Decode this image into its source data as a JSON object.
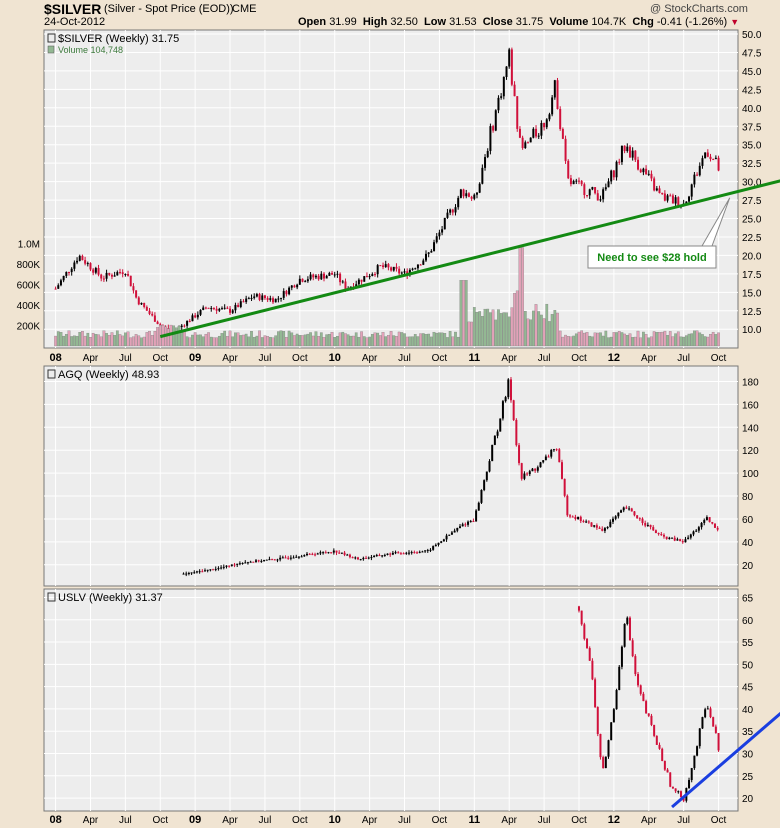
{
  "header": {
    "symbol": "$SILVER",
    "name": "(Silver - Spot Price (EOD))",
    "exchange": "CME",
    "date": "24-Oct-2012",
    "brand": "@ StockCharts.com",
    "open_label": "Open",
    "open": "31.99",
    "high_label": "High",
    "high": "32.50",
    "low_label": "Low",
    "low": "31.53",
    "close_label": "Close",
    "close": "31.75",
    "volume_label": "Volume",
    "volume": "104.7K",
    "chg_label": "Chg",
    "chg": "-0.41 (-1.26%)",
    "chg_arrow": "▼"
  },
  "colors": {
    "up": "#000000",
    "down": "#d0103a",
    "trend_green": "#138a13",
    "trend_blue": "#1a3ee0",
    "vol_up": "#93b893",
    "vol_down": "#e2a2b8",
    "panel_bg": "#ededed",
    "grid": "#ffffff"
  },
  "chart_data": [
    {
      "type": "candlestick",
      "legend": "$SILVER (Weekly) 31.75",
      "volume_legend": "Volume 104,748",
      "x_ticks": [
        "08",
        "Apr",
        "Jul",
        "Oct",
        "09",
        "Apr",
        "Jul",
        "Oct",
        "10",
        "Apr",
        "Jul",
        "Oct",
        "11",
        "Apr",
        "Jul",
        "Oct",
        "12",
        "Apr",
        "Jul",
        "Oct"
      ],
      "y_ticks": [
        "10.0",
        "12.5",
        "15.0",
        "17.5",
        "20.0",
        "22.5",
        "25.0",
        "27.5",
        "30.0",
        "32.5",
        "35.0",
        "37.5",
        "40.0",
        "42.5",
        "45.0",
        "47.5",
        "50.0"
      ],
      "volume_ticks": [
        "200K",
        "400K",
        "600K",
        "800K",
        "1.0M"
      ],
      "ylim": [
        8,
        50
      ],
      "close_points": [
        [
          "2008-01",
          15.5
        ],
        [
          "2008-03",
          20.0
        ],
        [
          "2008-05",
          17.0
        ],
        [
          "2008-07",
          18.0
        ],
        [
          "2008-08",
          14.0
        ],
        [
          "2008-10",
          10.5
        ],
        [
          "2008-11",
          9.5
        ],
        [
          "2009-02",
          13.0
        ],
        [
          "2009-04",
          12.5
        ],
        [
          "2009-06",
          14.5
        ],
        [
          "2009-08",
          14.0
        ],
        [
          "2009-10",
          16.8
        ],
        [
          "2010-01",
          17.5
        ],
        [
          "2010-02",
          15.5
        ],
        [
          "2010-05",
          18.5
        ],
        [
          "2010-07",
          17.5
        ],
        [
          "2010-09",
          20.0
        ],
        [
          "2010-12",
          29.0
        ],
        [
          "2011-01",
          27.5
        ],
        [
          "2011-04",
          47.0
        ],
        [
          "2011-05",
          34.0
        ],
        [
          "2011-07",
          38.0
        ],
        [
          "2011-08",
          43.0
        ],
        [
          "2011-09",
          30.0
        ],
        [
          "2011-12",
          28.0
        ],
        [
          "2012-02",
          35.0
        ],
        [
          "2012-05",
          28.0
        ],
        [
          "2012-07",
          27.0
        ],
        [
          "2012-09",
          34.5
        ],
        [
          "2012-10",
          31.75
        ]
      ],
      "annotation": "Need to see $28 hold",
      "trendline": [
        [
          "2008-10",
          9.0
        ],
        [
          "2012-10",
          28.0
        ]
      ]
    },
    {
      "type": "candlestick",
      "legend": "AGQ (Weekly) 48.93",
      "x_ticks": [
        "08",
        "Apr",
        "Jul",
        "Oct",
        "09",
        "Apr",
        "Jul",
        "Oct",
        "10",
        "Apr",
        "Jul",
        "Oct",
        "11",
        "Apr",
        "Jul",
        "Oct",
        "12",
        "Apr",
        "Jul",
        "Oct"
      ],
      "y_ticks": [
        "20",
        "40",
        "60",
        "80",
        "100",
        "120",
        "140",
        "160",
        "180"
      ],
      "ylim": [
        5,
        190
      ],
      "close_points": [
        [
          "2008-12",
          12
        ],
        [
          "2009-03",
          17
        ],
        [
          "2009-05",
          22
        ],
        [
          "2009-08",
          25
        ],
        [
          "2009-10",
          28
        ],
        [
          "2010-01",
          32
        ],
        [
          "2010-03",
          25
        ],
        [
          "2010-06",
          30
        ],
        [
          "2010-09",
          32
        ],
        [
          "2010-12",
          55
        ],
        [
          "2011-01",
          60
        ],
        [
          "2011-04",
          180
        ],
        [
          "2011-05",
          95
        ],
        [
          "2011-07",
          110
        ],
        [
          "2011-08",
          125
        ],
        [
          "2011-09",
          65
        ],
        [
          "2011-12",
          50
        ],
        [
          "2012-02",
          70
        ],
        [
          "2012-05",
          45
        ],
        [
          "2012-07",
          40
        ],
        [
          "2012-09",
          60
        ],
        [
          "2012-10",
          48.93
        ]
      ]
    },
    {
      "type": "candlestick",
      "legend": "USLV (Weekly) 31.37",
      "x_ticks": [
        "08",
        "Apr",
        "Jul",
        "Oct",
        "09",
        "Apr",
        "Jul",
        "Oct",
        "10",
        "Apr",
        "Jul",
        "Oct",
        "11",
        "Apr",
        "Jul",
        "Oct",
        "12",
        "Apr",
        "Jul",
        "Oct"
      ],
      "y_ticks": [
        "20",
        "25",
        "30",
        "35",
        "40",
        "45",
        "50",
        "55",
        "60",
        "65"
      ],
      "ylim": [
        18,
        66
      ],
      "close_points": [
        [
          "2011-10",
          63
        ],
        [
          "2011-11",
          50
        ],
        [
          "2011-12",
          25
        ],
        [
          "2012-01",
          40
        ],
        [
          "2012-02",
          62
        ],
        [
          "2012-03",
          45
        ],
        [
          "2012-05",
          30
        ],
        [
          "2012-06",
          22
        ],
        [
          "2012-07",
          20
        ],
        [
          "2012-08",
          30
        ],
        [
          "2012-09",
          42
        ],
        [
          "2012-10",
          31.37
        ]
      ],
      "trendline": [
        [
          "2012-06",
          18.0
        ],
        [
          "2012-10",
          27.0
        ]
      ]
    }
  ]
}
